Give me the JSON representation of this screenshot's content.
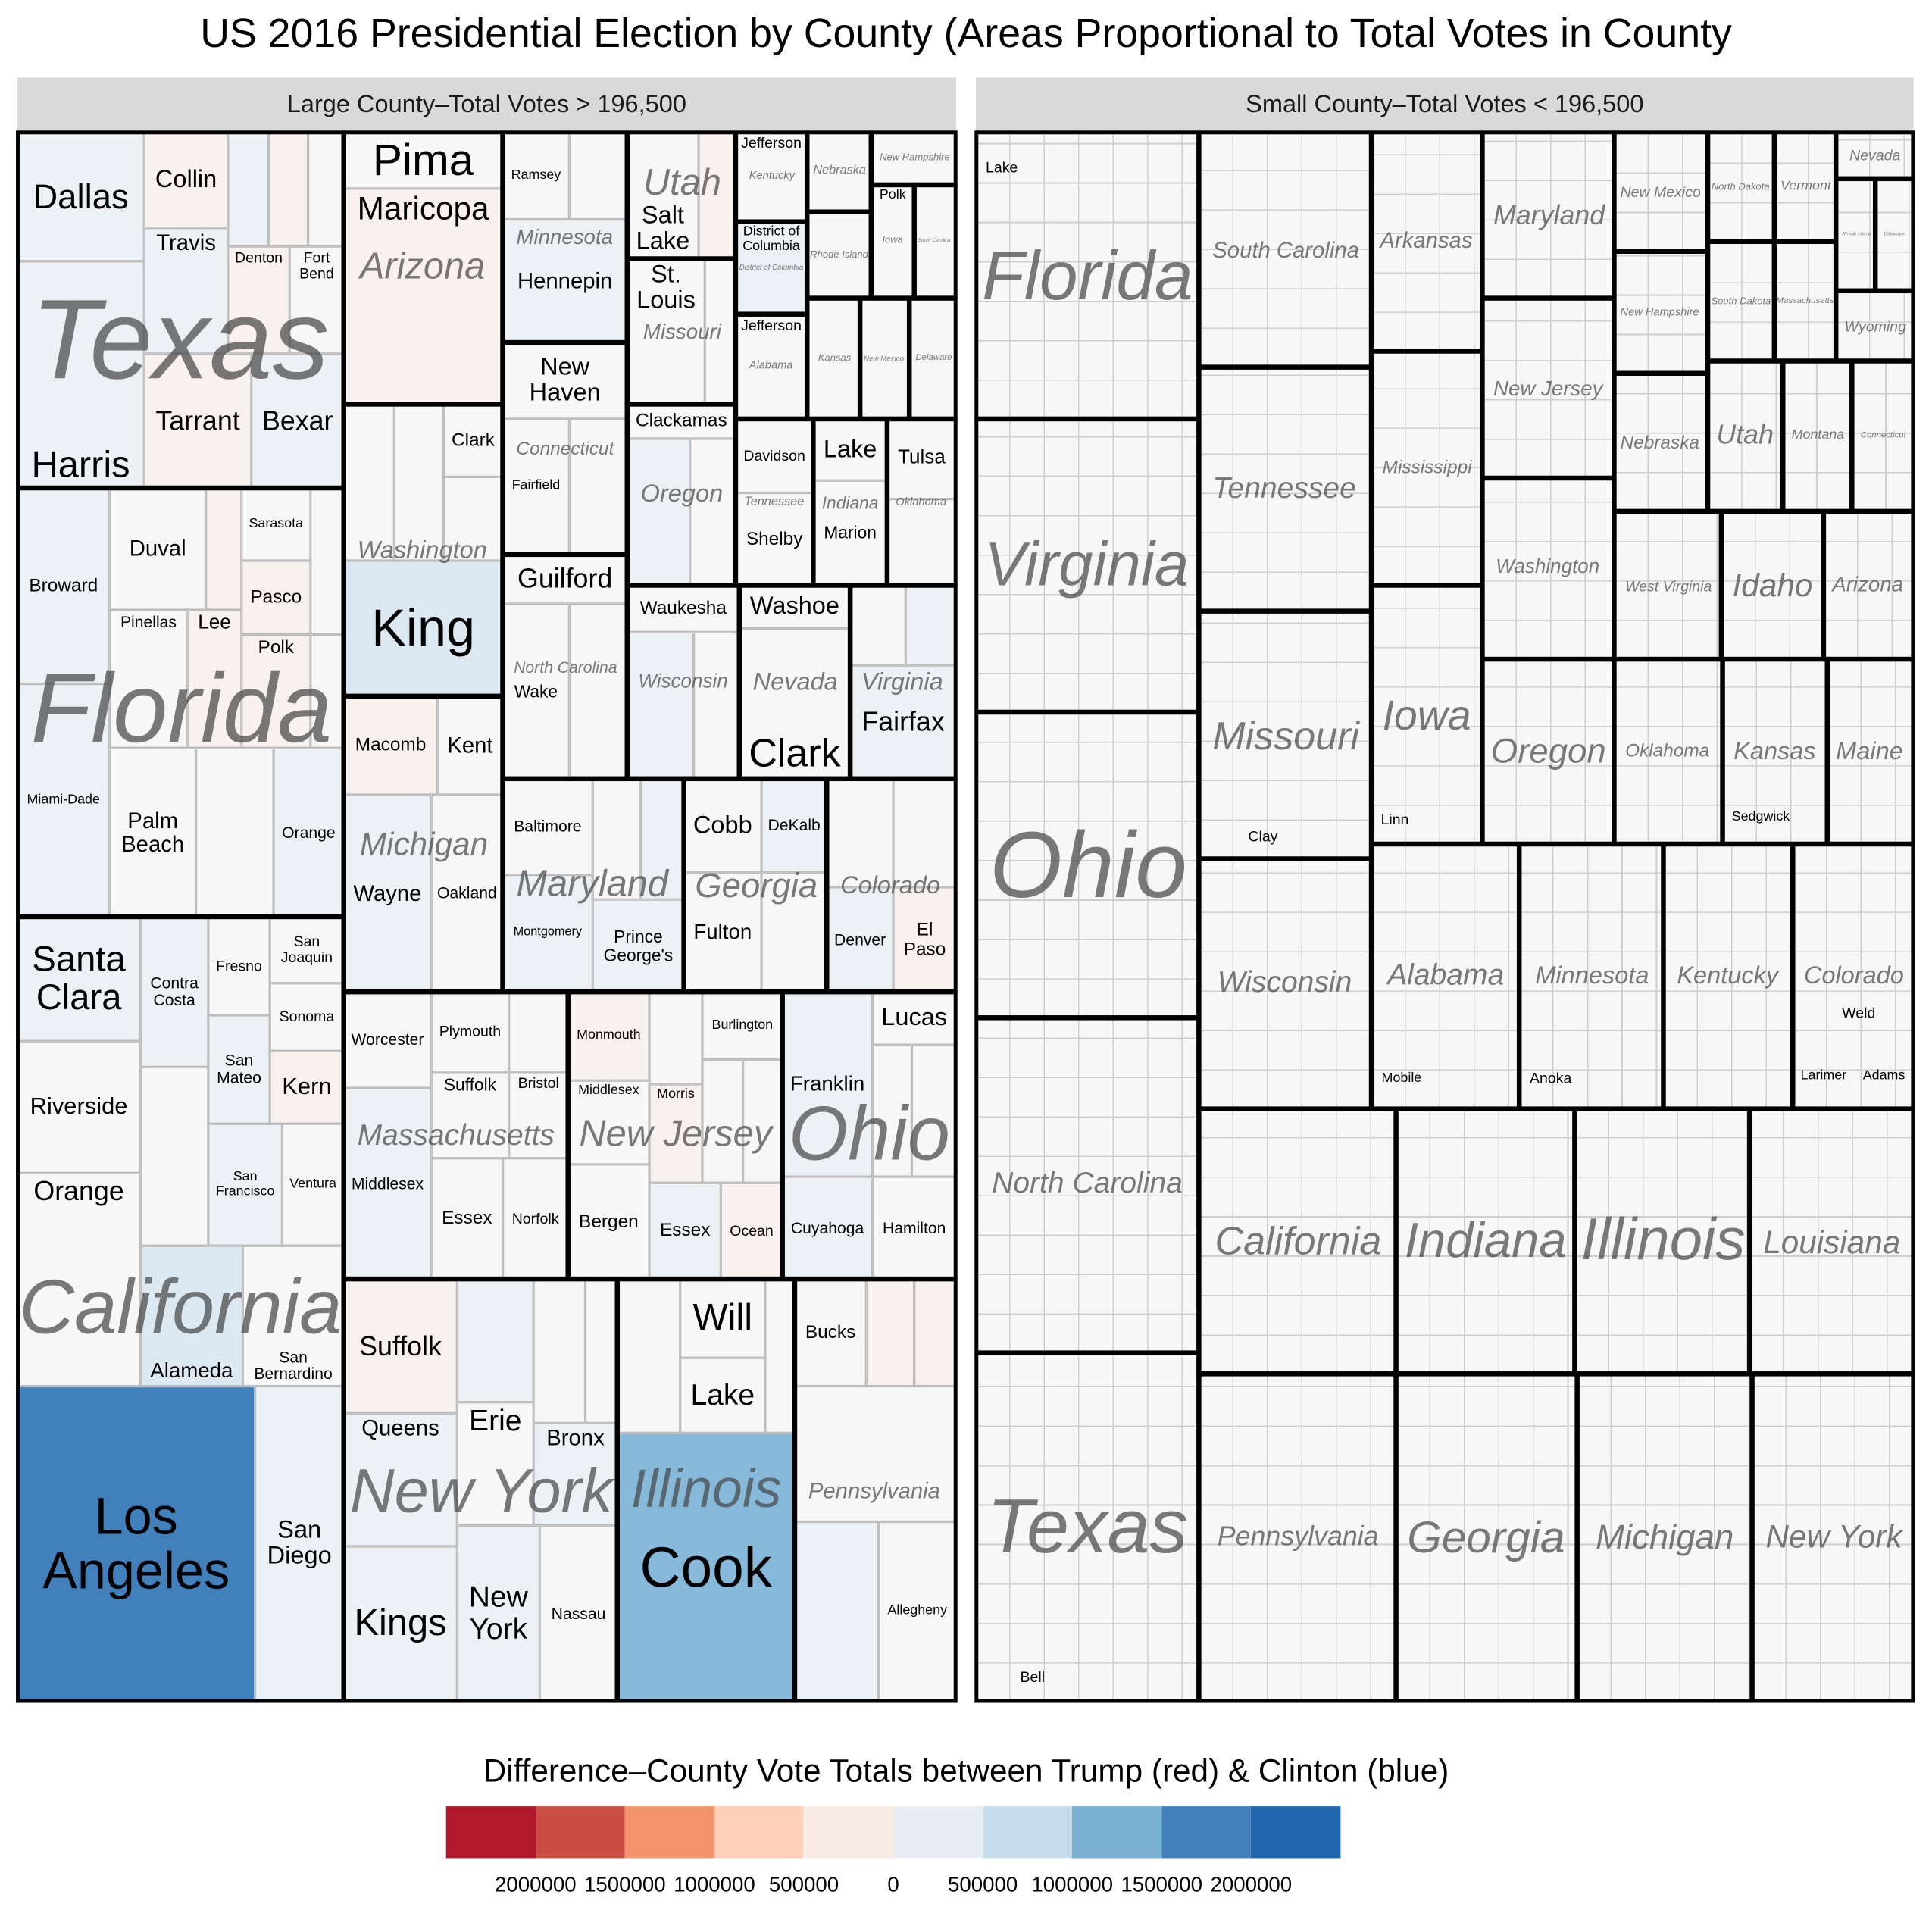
{
  "chart_data": {
    "type": "treemap",
    "title": "US 2016 Presidential Election by County (Areas Proportional to Total Votes in County",
    "panels": [
      {
        "title": "Large County–Total Votes > 196,500",
        "states": [
          {
            "name": "Texas",
            "counties": [
              "Dallas",
              "Collin",
              "Travis",
              "Denton",
              "Fort Bend",
              "Harris",
              "Tarrant",
              "Bexar"
            ]
          },
          {
            "name": "Florida",
            "counties": [
              "Broward",
              "Duval",
              "Sarasota",
              "Pasco",
              "Pinellas",
              "Lee",
              "Polk",
              "Miami-Dade",
              "Palm Beach",
              "Orange"
            ]
          },
          {
            "name": "California",
            "counties": [
              "Santa Clara",
              "Riverside",
              "Orange",
              "Contra Costa",
              "Fresno",
              "San Joaquin",
              "Sonoma",
              "San Mateo",
              "Kern",
              "San Francisco",
              "Ventura",
              "Alameda",
              "San Bernardino",
              "Los Angeles",
              "San Diego"
            ]
          },
          {
            "name": "Arizona",
            "counties": [
              "Pima",
              "Maricopa"
            ]
          },
          {
            "name": "Washington",
            "counties": [
              "Clark",
              "King"
            ]
          },
          {
            "name": "Michigan",
            "counties": [
              "Macomb",
              "Kent",
              "Wayne",
              "Oakland"
            ]
          },
          {
            "name": "Massachusetts",
            "counties": [
              "Worcester",
              "Plymouth",
              "Suffolk",
              "Bristol",
              "Middlesex",
              "Essex",
              "Norfolk"
            ]
          },
          {
            "name": "New York",
            "counties": [
              "Suffolk",
              "Queens",
              "Kings",
              "Erie",
              "Bronx",
              "New York",
              "Nassau"
            ]
          },
          {
            "name": "Minnesota",
            "counties": [
              "Ramsey",
              "Hennepin"
            ]
          },
          {
            "name": "Connecticut",
            "counties": [
              "New Haven",
              "Fairfield"
            ]
          },
          {
            "name": "North Carolina",
            "counties": [
              "Guilford",
              "Wake"
            ]
          },
          {
            "name": "Maryland",
            "counties": [
              "Baltimore",
              "Montgomery",
              "Prince George's"
            ]
          },
          {
            "name": "New Jersey",
            "counties": [
              "Monmouth",
              "Burlington",
              "Middlesex",
              "Morris",
              "Bergen",
              "Essex",
              "Ocean"
            ]
          },
          {
            "name": "Illinois",
            "counties": [
              "Will",
              "Lake",
              "Cook"
            ]
          },
          {
            "name": "Pennsylvania",
            "counties": [
              "Bucks",
              "Allegheny"
            ]
          },
          {
            "name": "Utah",
            "counties": [
              "Salt Lake"
            ]
          },
          {
            "name": "Missouri",
            "counties": [
              "St. Louis"
            ]
          },
          {
            "name": "Oregon",
            "counties": [
              "Clackamas"
            ]
          },
          {
            "name": "Wisconsin",
            "counties": [
              "Waukesha"
            ]
          },
          {
            "name": "Nevada",
            "counties": [
              "Washoe",
              "Clark"
            ]
          },
          {
            "name": "Virginia",
            "counties": [
              "Fairfax"
            ]
          },
          {
            "name": "Georgia",
            "counties": [
              "Cobb",
              "DeKalb",
              "Fulton"
            ]
          },
          {
            "name": "Colorado",
            "counties": [
              "Denver",
              "El Paso"
            ]
          },
          {
            "name": "Ohio",
            "counties": [
              "Lucas",
              "Franklin",
              "Cuyahoga",
              "Hamilton"
            ]
          },
          {
            "name": "Kentucky",
            "counties": [
              "Jefferson"
            ]
          },
          {
            "name": "District of Columbia",
            "counties": [
              "District of Columbia"
            ]
          },
          {
            "name": "Alabama",
            "counties": [
              "Jefferson"
            ]
          },
          {
            "name": "Nebraska",
            "counties": []
          },
          {
            "name": "Rhode Island",
            "counties": []
          },
          {
            "name": "New Hampshire",
            "counties": []
          },
          {
            "name": "Iowa",
            "counties": [
              "Polk"
            ]
          },
          {
            "name": "South Carolina",
            "counties": []
          },
          {
            "name": "Kansas",
            "counties": []
          },
          {
            "name": "New Mexico",
            "counties": []
          },
          {
            "name": "Delaware",
            "counties": []
          },
          {
            "name": "Tennessee",
            "counties": [
              "Davidson",
              "Shelby"
            ]
          },
          {
            "name": "Indiana",
            "counties": [
              "Lake",
              "Marion"
            ]
          },
          {
            "name": "Oklahoma",
            "counties": [
              "Tulsa"
            ]
          }
        ]
      },
      {
        "title": "Small County–Total Votes < 196,500",
        "states": [
          {
            "name": "Florida",
            "counties": [
              "Lake"
            ]
          },
          {
            "name": "Virginia",
            "counties": []
          },
          {
            "name": "Ohio",
            "counties": []
          },
          {
            "name": "North Carolina",
            "counties": []
          },
          {
            "name": "Texas",
            "counties": [
              "Bell"
            ]
          },
          {
            "name": "South Carolina",
            "counties": []
          },
          {
            "name": "Tennessee",
            "counties": []
          },
          {
            "name": "Missouri",
            "counties": [
              "Clay"
            ]
          },
          {
            "name": "Wisconsin",
            "counties": []
          },
          {
            "name": "California",
            "counties": []
          },
          {
            "name": "Pennsylvania",
            "counties": []
          },
          {
            "name": "Arkansas",
            "counties": []
          },
          {
            "name": "Mississippi",
            "counties": []
          },
          {
            "name": "Iowa",
            "counties": [
              "Linn"
            ]
          },
          {
            "name": "Alabama",
            "counties": [
              "Mobile"
            ]
          },
          {
            "name": "Indiana",
            "counties": []
          },
          {
            "name": "Georgia",
            "counties": []
          },
          {
            "name": "Maryland",
            "counties": []
          },
          {
            "name": "New Jersey",
            "counties": []
          },
          {
            "name": "Washington",
            "counties": []
          },
          {
            "name": "Oregon",
            "counties": []
          },
          {
            "name": "Minnesota",
            "counties": [
              "Anoka"
            ]
          },
          {
            "name": "Illinois",
            "counties": []
          },
          {
            "name": "Michigan",
            "counties": []
          },
          {
            "name": "New Mexico",
            "counties": []
          },
          {
            "name": "New Hampshire",
            "counties": []
          },
          {
            "name": "Nebraska",
            "counties": []
          },
          {
            "name": "North Dakota",
            "counties": []
          },
          {
            "name": "Vermont",
            "counties": []
          },
          {
            "name": "South Dakota",
            "counties": []
          },
          {
            "name": "Massachusetts",
            "counties": []
          },
          {
            "name": "Nevada",
            "counties": []
          },
          {
            "name": "Rhode Island",
            "counties": []
          },
          {
            "name": "Delaware",
            "counties": []
          },
          {
            "name": "Wyoming",
            "counties": []
          },
          {
            "name": "Utah",
            "counties": []
          },
          {
            "name": "Montana",
            "counties": []
          },
          {
            "name": "Connecticut",
            "counties": []
          },
          {
            "name": "West Virginia",
            "counties": []
          },
          {
            "name": "Idaho",
            "counties": []
          },
          {
            "name": "Arizona",
            "counties": []
          },
          {
            "name": "Oklahoma",
            "counties": []
          },
          {
            "name": "Kansas",
            "counties": [
              "Sedgwick"
            ]
          },
          {
            "name": "Maine",
            "counties": []
          },
          {
            "name": "Kentucky",
            "counties": []
          },
          {
            "name": "Colorado",
            "counties": [
              "Weld",
              "Larimer",
              "Adams"
            ]
          },
          {
            "name": "Louisiana",
            "counties": []
          },
          {
            "name": "New York",
            "counties": []
          }
        ]
      }
    ],
    "legend": {
      "title": "Difference–County Vote Totals between Trump (red) & Clinton (blue)",
      "colors": [
        "#b2182b",
        "#ca4e43",
        "#f2956f",
        "#fdd0ba",
        "#f8ebe5",
        "#e7eef2",
        "#c5dcec",
        "#7ab0d4",
        "#427fbb",
        "#2166ac"
      ],
      "ticks": [
        "2000000",
        "1500000",
        "1000000",
        "500000",
        "0",
        "500000",
        "1000000",
        "1500000",
        "2000000"
      ]
    }
  }
}
